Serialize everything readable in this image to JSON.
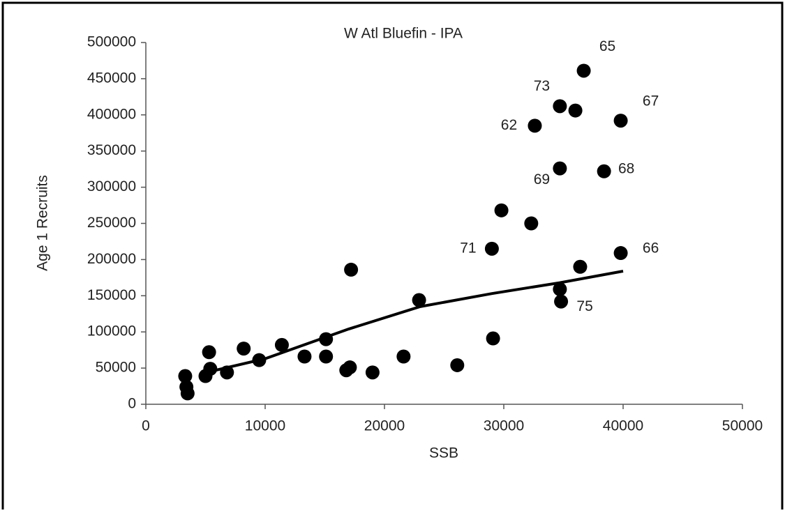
{
  "chart_data": {
    "type": "scatter",
    "title": "W Atl Bluefin - IPA",
    "x_label": "SSB",
    "y_label": "Age 1 Recruits",
    "xlim": [
      0,
      50000
    ],
    "xticks": [
      0,
      10000,
      20000,
      30000,
      40000,
      50000
    ],
    "ylim": [
      0,
      500000
    ],
    "yticks": [
      0,
      50000,
      100000,
      150000,
      200000,
      250000,
      300000,
      350000,
      400000,
      450000,
      500000
    ],
    "grid": false,
    "series": [
      {
        "type": "scatter",
        "color": "#000000",
        "x": [
          36700,
          34700,
          36000,
          39800,
          32600,
          34700,
          38400,
          29800,
          32300,
          29000,
          39800,
          36400,
          17200,
          34700,
          34800,
          22900,
          29100,
          15100,
          11400,
          8200,
          5300,
          9500,
          13300,
          15100,
          21600,
          26100,
          17100,
          16800,
          19000,
          6800,
          5400,
          5000,
          3300,
          3400,
          3500
        ],
        "y": [
          461000,
          412000,
          406000,
          392000,
          385000,
          326000,
          322000,
          268000,
          250000,
          215000,
          209000,
          190000,
          186000,
          159000,
          142000,
          144000,
          91000,
          90000,
          82000,
          77000,
          72000,
          61000,
          66000,
          66000,
          66000,
          54000,
          51000,
          47000,
          44000,
          44000,
          49000,
          39000,
          39000,
          24000,
          15000
        ],
        "point_labels": [
          "65",
          "73",
          null,
          "67",
          "62",
          "69",
          "68",
          null,
          null,
          "71",
          "66",
          null,
          null,
          null,
          "75",
          null,
          null,
          null,
          null,
          null,
          null,
          null,
          null,
          null,
          null,
          null,
          null,
          null,
          null,
          null,
          null,
          null,
          null,
          null,
          null
        ]
      },
      {
        "type": "line",
        "color": "#000000",
        "x": [
          4800,
          10000,
          17000,
          23000,
          29000,
          34700,
          40000
        ],
        "y": [
          43000,
          63000,
          104000,
          135000,
          153000,
          168000,
          184000
        ]
      }
    ]
  }
}
